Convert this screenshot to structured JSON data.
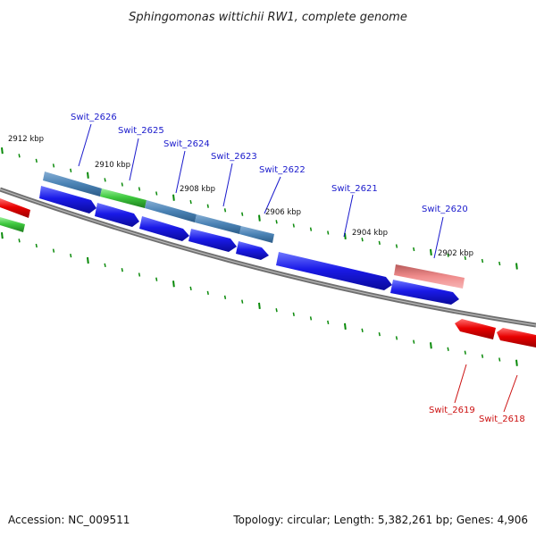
{
  "title": "Sphingomonas wittichii RW1, complete genome",
  "footer": {
    "accession": "Accession: NC_009511",
    "stats": "Topology: circular; Length: 5,382,261 bp; Genes: 4,906"
  },
  "ticks": [
    "2912 kbp",
    "2910 kbp",
    "2908 kbp",
    "2906 kbp",
    "2904 kbp",
    "2902 kbp"
  ],
  "genes_forward": [
    "Swit_2626",
    "Swit_2625",
    "Swit_2624",
    "Swit_2623",
    "Swit_2622",
    "Swit_2621",
    "Swit_2620"
  ],
  "genes_reverse": [
    "Swit_2619",
    "Swit_2618"
  ],
  "colors": {
    "forward_gene": "#1515e6",
    "reverse_gene": "#e60000",
    "cog_blue": "#4a82b4",
    "cog_green": "#3cc83c",
    "cog_red": "#e87878",
    "backbone": "#808080",
    "tick": "#0a8a0a",
    "forward_label": "#1a1acc",
    "reverse_label": "#cc1010"
  }
}
